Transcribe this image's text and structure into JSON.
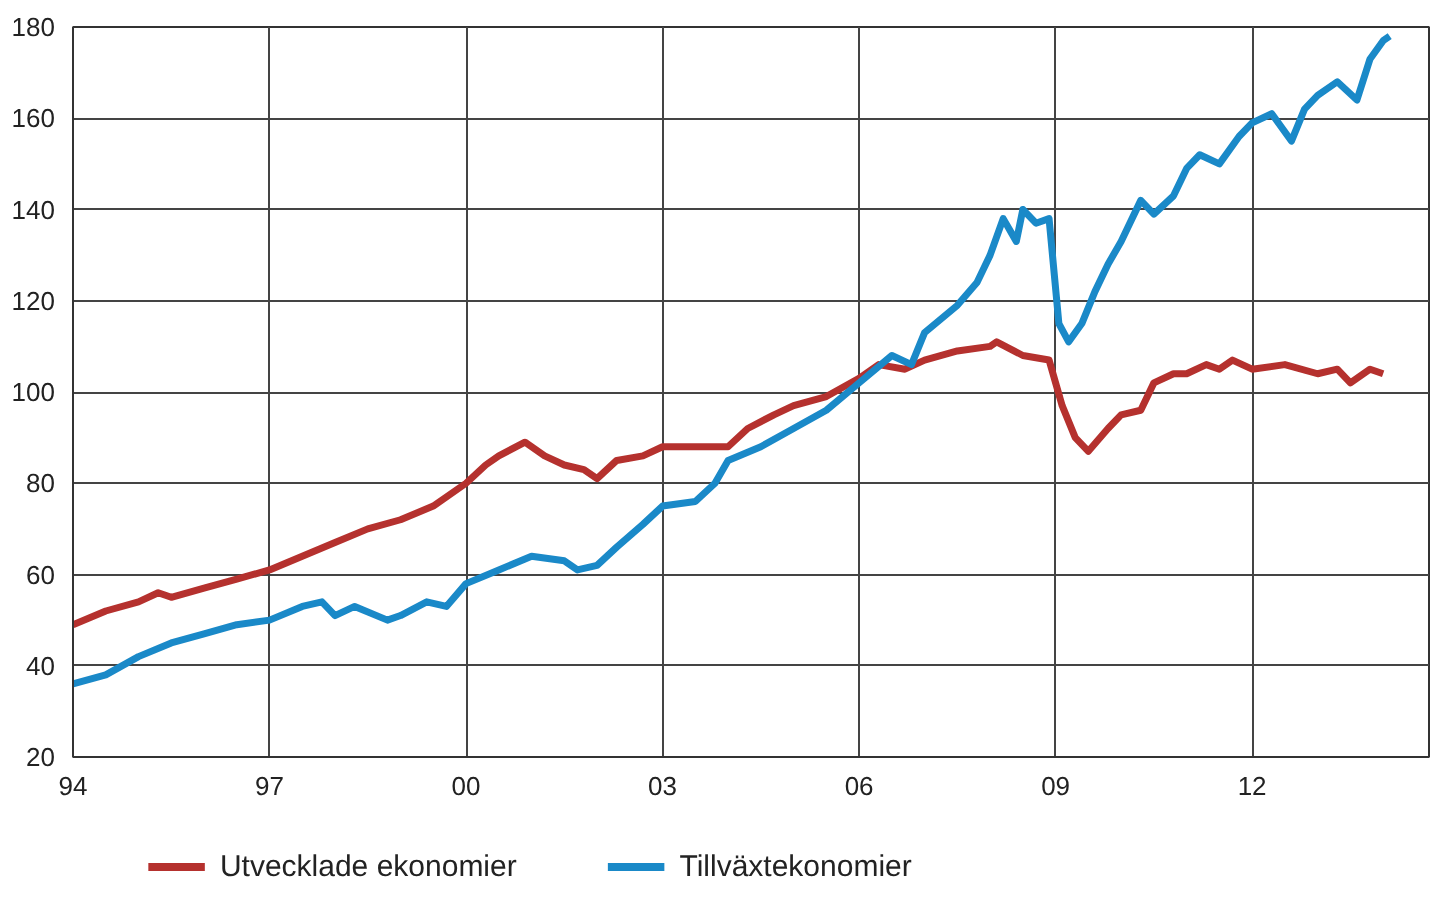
{
  "chart_data": {
    "type": "line",
    "x": [
      1994.0,
      1994.5,
      1995.0,
      1995.3,
      1995.5,
      1996.0,
      1996.5,
      1997.0,
      1997.5,
      1998.0,
      1998.5,
      1999.0,
      1999.5,
      2000.0,
      2000.3,
      2000.5,
      2000.9,
      2001.2,
      2001.5,
      2001.8,
      2002.0,
      2002.3,
      2002.7,
      2003.0,
      2003.5,
      2004.0,
      2004.3,
      2004.7,
      2005.0,
      2005.5,
      2006.0,
      2006.3,
      2006.7,
      2007.0,
      2007.5,
      2008.0,
      2008.1,
      2008.5,
      2008.9,
      2009.1,
      2009.3,
      2009.5,
      2009.8,
      2010.0,
      2010.3,
      2010.5,
      2010.8,
      2011.0,
      2011.3,
      2011.5,
      2011.7,
      2012.0,
      2012.5,
      2013.0,
      2013.3,
      2013.5,
      2013.8,
      2014.0
    ],
    "series": [
      {
        "name": "Utvecklade ekonomier",
        "color": "#b5312e",
        "values": [
          49,
          52,
          54,
          56,
          55,
          57,
          59,
          61,
          64,
          67,
          70,
          72,
          75,
          80,
          84,
          86,
          89,
          86,
          84,
          83,
          81,
          85,
          86,
          88,
          88,
          88,
          92,
          95,
          97,
          99,
          103,
          106,
          105,
          107,
          109,
          110,
          111,
          108,
          107,
          97,
          90,
          87,
          92,
          95,
          96,
          102,
          104,
          104,
          106,
          105,
          107,
          105,
          106,
          104,
          105,
          102,
          105,
          104
        ]
      },
      {
        "name": "Tillväxtekonomier",
        "color": "#1a89c8",
        "x": [
          1994.0,
          1994.5,
          1995.0,
          1995.5,
          1996.0,
          1996.5,
          1997.0,
          1997.5,
          1997.8,
          1998.0,
          1998.3,
          1998.8,
          1999.0,
          1999.4,
          1999.7,
          2000.0,
          2000.5,
          2001.0,
          2001.5,
          2001.7,
          2002.0,
          2002.3,
          2002.7,
          2003.0,
          2003.5,
          2003.8,
          2004.0,
          2004.5,
          2005.0,
          2005.5,
          2006.0,
          2006.5,
          2006.8,
          2007.0,
          2007.5,
          2007.8,
          2008.0,
          2008.2,
          2008.4,
          2008.5,
          2008.7,
          2008.9,
          2009.05,
          2009.2,
          2009.4,
          2009.6,
          2009.8,
          2010.0,
          2010.3,
          2010.5,
          2010.8,
          2011.0,
          2011.2,
          2011.5,
          2011.8,
          2012.0,
          2012.3,
          2012.6,
          2012.8,
          2013.0,
          2013.3,
          2013.6,
          2013.8,
          2014.0,
          2014.1
        ],
        "values": [
          36,
          38,
          42,
          45,
          47,
          49,
          50,
          53,
          54,
          51,
          53,
          50,
          51,
          54,
          53,
          58,
          61,
          64,
          63,
          61,
          62,
          66,
          71,
          75,
          76,
          80,
          85,
          88,
          92,
          96,
          102,
          108,
          106,
          113,
          119,
          124,
          130,
          138,
          133,
          140,
          137,
          138,
          115,
          111,
          115,
          122,
          128,
          133,
          142,
          139,
          143,
          149,
          152,
          150,
          156,
          159,
          161,
          155,
          162,
          165,
          168,
          164,
          173,
          177,
          178
        ]
      }
    ],
    "xlim": [
      1994,
      2014.7
    ],
    "xticks": [
      {
        "value": 1994,
        "label": "94"
      },
      {
        "value": 1997,
        "label": "97"
      },
      {
        "value": 2000,
        "label": "00"
      },
      {
        "value": 2003,
        "label": "03"
      },
      {
        "value": 2006,
        "label": "06"
      },
      {
        "value": 2009,
        "label": "09"
      },
      {
        "value": 2012,
        "label": "12"
      }
    ],
    "ylim": [
      20,
      180
    ],
    "yticks": [
      20,
      40,
      60,
      80,
      100,
      120,
      140,
      160,
      180
    ],
    "grid": true,
    "legend": "bottom",
    "line_style": "solid",
    "marker": "none"
  }
}
